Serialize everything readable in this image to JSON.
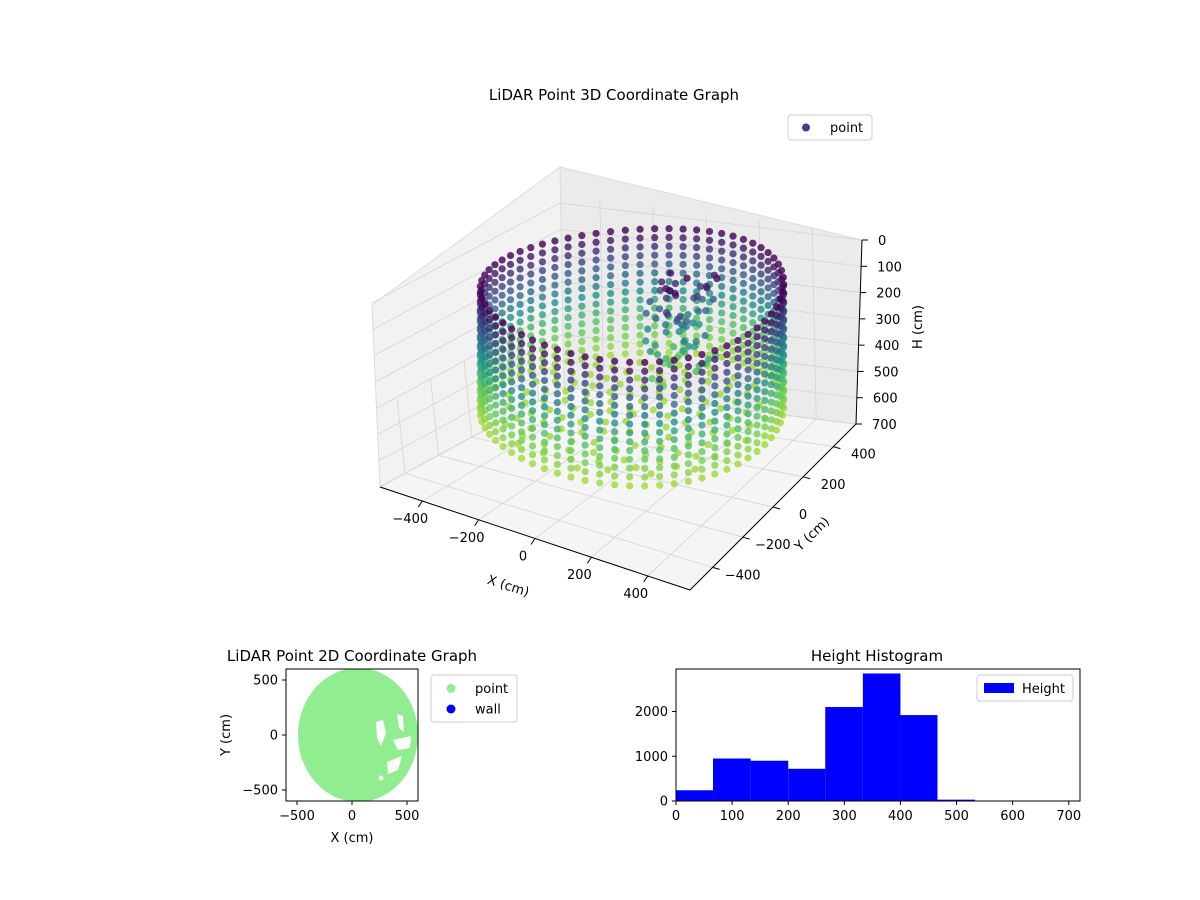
{
  "colors": {
    "point_3d_legend": "#3f3f8f",
    "point_2d": "#90ee90",
    "wall_2d": "#0000ff",
    "hist_bar": "#0000ff",
    "viridis_dark": "#440154",
    "viridis_mid": "#21918c",
    "viridis_light": "#5ec962",
    "pane": "#f2f2f2",
    "grid": "#d4d4d4"
  },
  "chart_data": [
    {
      "id": "scatter3d",
      "type": "scatter",
      "title": "LiDAR Point 3D Coordinate Graph",
      "xlabel": "X (cm)",
      "ylabel": "Y (cm)",
      "zlabel": "H (cm)",
      "xlim": [
        -550,
        550
      ],
      "ylim": [
        -550,
        550
      ],
      "zlim": [
        0,
        700
      ],
      "z_inverted": true,
      "xticks": [
        "−400",
        "−200",
        "0",
        "200",
        "400"
      ],
      "yticks": [
        "−400",
        "−200",
        "0",
        "200",
        "400"
      ],
      "zticks": [
        "0",
        "100",
        "200",
        "300",
        "400",
        "500",
        "600",
        "700"
      ],
      "legend": {
        "position": "upper right",
        "entries": [
          "point"
        ]
      },
      "series": [
        {
          "name": "point",
          "shape": "cylindrical wall of points, radius about 480 cm, heights 0 to 470 cm, colored by height with viridis colormap, plus an interior cluster of obstacle points",
          "wall_radius": 480,
          "height_range": [
            0,
            470
          ]
        }
      ]
    },
    {
      "id": "scatter2d",
      "type": "scatter",
      "title": "LiDAR Point 2D Coordinate Graph",
      "xlabel": "X (cm)",
      "ylabel": "Y (cm)",
      "xlim": [
        -600,
        600
      ],
      "ylim": [
        -600,
        600
      ],
      "xticks": [
        "−500",
        "0",
        "500"
      ],
      "yticks": [
        "−500",
        "0",
        "500"
      ],
      "legend": {
        "position": "outside right",
        "entries": [
          "point",
          "wall"
        ]
      },
      "series": [
        {
          "name": "point",
          "region": "filled disc centered near (50, 0) with radius about 550 cm"
        },
        {
          "name": "wall",
          "points": []
        }
      ]
    },
    {
      "id": "histogram",
      "type": "bar",
      "title": "Height Histogram",
      "xlim": [
        0,
        720
      ],
      "ylim": [
        0,
        2950
      ],
      "xticks": [
        "0",
        "100",
        "200",
        "300",
        "400",
        "500",
        "600",
        "700"
      ],
      "yticks": [
        "0",
        "1000",
        "2000"
      ],
      "legend": {
        "position": "upper right",
        "entries": [
          "Height"
        ]
      },
      "series": [
        {
          "name": "Height",
          "bin_edges": [
            0,
            66,
            133,
            200,
            266,
            333,
            400,
            466,
            533,
            600,
            666
          ],
          "values": [
            240,
            950,
            900,
            720,
            2100,
            2850,
            1920,
            30,
            8,
            4
          ]
        }
      ]
    }
  ]
}
